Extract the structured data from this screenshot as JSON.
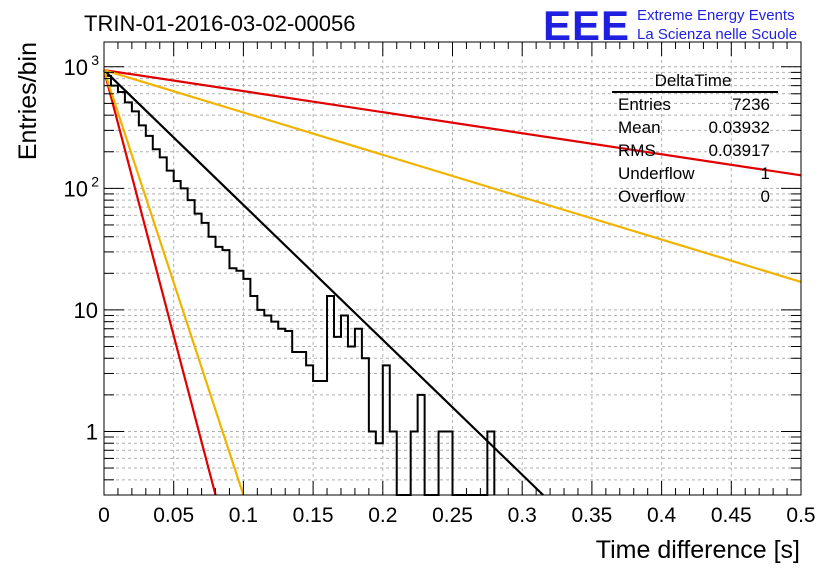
{
  "title": "TRIN-01-2016-03-02-00056",
  "logo": {
    "mark": "EEE",
    "line1": "Extreme Energy Events",
    "line2": "La Scienza nelle Scuole",
    "color": "#1f1fe0"
  },
  "stats_box": {
    "name": "DeltaTime",
    "rows": [
      {
        "label": "Entries",
        "value": "7236"
      },
      {
        "label": "Mean",
        "value": "0.03932"
      },
      {
        "label": "RMS",
        "value": "0.03917"
      },
      {
        "label": "Underflow",
        "value": "1"
      },
      {
        "label": "Overflow",
        "value": "0"
      }
    ]
  },
  "chart_data": {
    "type": "histogram",
    "xlabel": "Time difference [s]",
    "ylabel": "Entries/bin",
    "xlim": [
      0,
      0.5
    ],
    "ylim": [
      0.3,
      1600
    ],
    "yscale": "log",
    "grid": true,
    "x_ticks": [
      "0",
      "0.05",
      "0.1",
      "0.15",
      "0.2",
      "0.25",
      "0.3",
      "0.35",
      "0.4",
      "0.45",
      "0.5"
    ],
    "y_ticks": [
      {
        "value": 1,
        "mantissa": "1",
        "exp": ""
      },
      {
        "value": 10,
        "mantissa": "10",
        "exp": ""
      },
      {
        "value": 100,
        "mantissa": "10",
        "exp": "2"
      },
      {
        "value": 1000,
        "mantissa": "10",
        "exp": "3"
      }
    ],
    "bin_width": 0.005,
    "histogram": {
      "color": "#000000",
      "counts": [
        840,
        700,
        620,
        510,
        430,
        330,
        270,
        210,
        180,
        140,
        115,
        100,
        80,
        62,
        52,
        40,
        33,
        31,
        22,
        21,
        18,
        13,
        10,
        9,
        8,
        7,
        6.7,
        4.5,
        4.5,
        3.5,
        2.6,
        2.6,
        13,
        6,
        9,
        5,
        7,
        4,
        1,
        0.8,
        3.5,
        1,
        0.3,
        0.3,
        1,
        2,
        0,
        0,
        1,
        1,
        0.3,
        0.3,
        0.3,
        0.3,
        0.3,
        1
      ]
    },
    "series": [
      {
        "color": "#000000",
        "x": [
          0,
          0.315
        ],
        "y": [
          940,
          0.3
        ]
      },
      {
        "color": "#e00000",
        "x": [
          0,
          0.5
        ],
        "y": [
          940,
          128
        ]
      },
      {
        "color": "#f0b400",
        "x": [
          0,
          0.5
        ],
        "y": [
          940,
          17
        ]
      },
      {
        "color": "#e00000",
        "x": [
          0,
          0.08
        ],
        "y": [
          940,
          0.3
        ]
      },
      {
        "color": "#f0b400",
        "x": [
          0,
          0.1
        ],
        "y": [
          940,
          0.3
        ]
      }
    ]
  }
}
